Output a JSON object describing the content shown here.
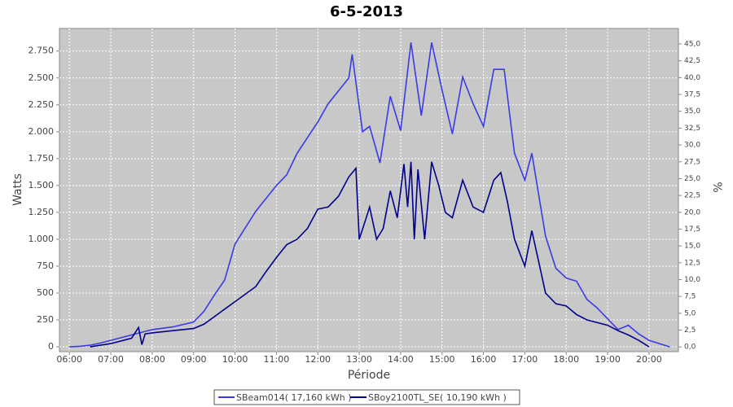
{
  "chart_data": {
    "type": "line",
    "title": "6-5-2013",
    "x_label": "Période",
    "y_label": "Watts",
    "y2_label": "%",
    "xlim": [
      5.76,
      20.71
    ],
    "ylim": [
      -45,
      2960
    ],
    "y2lim": [
      -0.7,
      47.3
    ],
    "xticks": [
      {
        "value": 6,
        "label": "06:00"
      },
      {
        "value": 7,
        "label": "07:00"
      },
      {
        "value": 8,
        "label": "08:00"
      },
      {
        "value": 9,
        "label": "09:00"
      },
      {
        "value": 10,
        "label": "10:00"
      },
      {
        "value": 11,
        "label": "11:00"
      },
      {
        "value": 12,
        "label": "12:00"
      },
      {
        "value": 13,
        "label": "13:00"
      },
      {
        "value": 14,
        "label": "14:00"
      },
      {
        "value": 15,
        "label": "15:00"
      },
      {
        "value": 16,
        "label": "16:00"
      },
      {
        "value": 17,
        "label": "17:00"
      },
      {
        "value": 18,
        "label": "18:00"
      },
      {
        "value": 19,
        "label": "19:00"
      },
      {
        "value": 20,
        "label": "20:00"
      }
    ],
    "yticks": [
      0,
      250,
      500,
      750,
      {
        "value": 1000,
        "label": "1.000"
      },
      {
        "value": 1250,
        "label": "1.250"
      },
      {
        "value": 1500,
        "label": "1.500"
      },
      {
        "value": 1750,
        "label": "1.750"
      },
      {
        "value": 2000,
        "label": "2.000"
      },
      {
        "value": 2250,
        "label": "2.250"
      },
      {
        "value": 2500,
        "label": "2.500"
      },
      {
        "value": 2750,
        "label": "2.750"
      }
    ],
    "y2ticks": [
      {
        "value": 0,
        "label": "0,0"
      },
      {
        "value": 2.5,
        "label": "2,5"
      },
      {
        "value": 5,
        "label": "5,0"
      },
      {
        "value": 7.5,
        "label": "7,5"
      },
      {
        "value": 10,
        "label": "10,0"
      },
      {
        "value": 12.5,
        "label": "12,5"
      },
      {
        "value": 15,
        "label": "15,0"
      },
      {
        "value": 17.5,
        "label": "17,5"
      },
      {
        "value": 20,
        "label": "20,0"
      },
      {
        "value": 22.5,
        "label": "22,5"
      },
      {
        "value": 25,
        "label": "25,0"
      },
      {
        "value": 27.5,
        "label": "27,5"
      },
      {
        "value": 30,
        "label": "30,0"
      },
      {
        "value": 32.5,
        "label": "32,5"
      },
      {
        "value": 35,
        "label": "35,0"
      },
      {
        "value": 37.5,
        "label": "37,5"
      },
      {
        "value": 40,
        "label": "40,0"
      },
      {
        "value": 42.5,
        "label": "42,5"
      },
      {
        "value": 45,
        "label": "45,0"
      }
    ],
    "grid": true,
    "legend": "bottom",
    "series": [
      {
        "name": "SBeam014( 17,160 kWh )",
        "color": "#3a3ae6",
        "x": [
          6,
          6.25,
          6.5,
          6.75,
          7,
          7.5,
          8,
          8.5,
          9,
          9.25,
          9.5,
          9.75,
          10,
          10.5,
          11,
          11.25,
          11.5,
          12,
          12.25,
          12.5,
          12.75,
          12.83,
          13.08,
          13.25,
          13.5,
          13.75,
          14,
          14.25,
          14.5,
          14.75,
          15,
          15.25,
          15.5,
          15.75,
          16,
          16.25,
          16.5,
          16.75,
          17,
          17.17,
          17.5,
          17.75,
          18,
          18.25,
          18.5,
          18.75,
          19,
          19.25,
          19.5,
          19.75,
          20,
          20.25,
          20.5
        ],
        "values": [
          0,
          5,
          15,
          35,
          60,
          110,
          160,
          185,
          230,
          330,
          480,
          620,
          955,
          1260,
          1500,
          1600,
          1800,
          2090,
          2260,
          2380,
          2500,
          2720,
          2000,
          2050,
          1710,
          2330,
          2010,
          2830,
          2150,
          2830,
          2390,
          1980,
          2510,
          2260,
          2050,
          2580,
          2580,
          1800,
          1550,
          1800,
          1030,
          730,
          640,
          610,
          440,
          360,
          260,
          160,
          200,
          120,
          60,
          30,
          0
        ]
      },
      {
        "name": "SBoy2100TL_SE( 10,190 kWh )",
        "color": "#00008b",
        "x": [
          6.5,
          7,
          7.5,
          7.67,
          7.75,
          7.83,
          8,
          8.5,
          9,
          9.25,
          9.5,
          9.75,
          10,
          10.5,
          10.75,
          11,
          11.25,
          11.5,
          11.75,
          12,
          12.25,
          12.5,
          12.75,
          12.92,
          13,
          13.17,
          13.25,
          13.42,
          13.58,
          13.75,
          13.92,
          14.08,
          14.17,
          14.25,
          14.33,
          14.42,
          14.58,
          14.75,
          14.92,
          15.08,
          15.25,
          15.5,
          15.75,
          16,
          16.25,
          16.42,
          16.58,
          16.75,
          17,
          17.17,
          17.33,
          17.5,
          17.75,
          18,
          18.25,
          18.5,
          19,
          19.25,
          19.5,
          19.75,
          20
        ],
        "values": [
          0,
          30,
          80,
          180,
          20,
          120,
          130,
          150,
          170,
          210,
          280,
          350,
          420,
          560,
          700,
          830,
          950,
          1000,
          1100,
          1280,
          1300,
          1400,
          1580,
          1660,
          1000,
          1200,
          1300,
          1000,
          1100,
          1450,
          1200,
          1700,
          1300,
          1720,
          1000,
          1650,
          1000,
          1720,
          1500,
          1250,
          1200,
          1550,
          1300,
          1250,
          1550,
          1620,
          1350,
          1000,
          750,
          1080,
          800,
          500,
          400,
          380,
          300,
          250,
          200,
          150,
          110,
          60,
          0
        ]
      }
    ]
  }
}
